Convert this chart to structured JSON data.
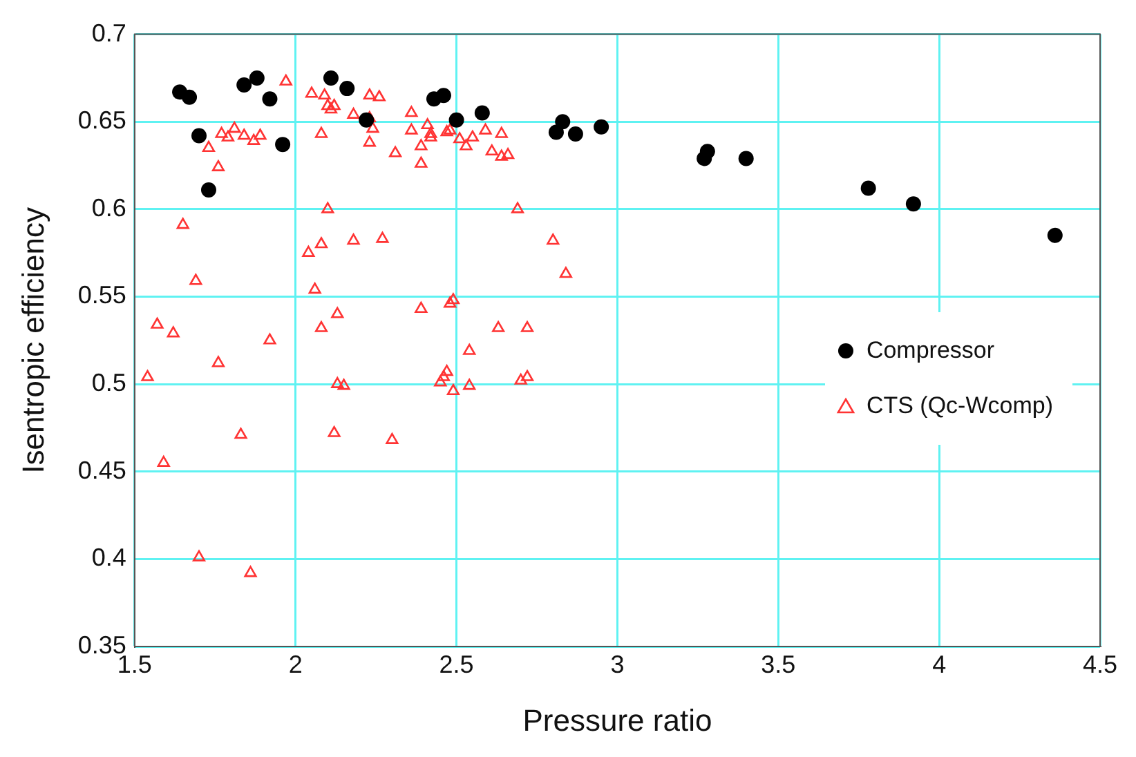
{
  "chart_data": {
    "type": "scatter",
    "xlabel": "Pressure ratio",
    "ylabel": "Isentropic efficiency",
    "xlim": [
      1.5,
      4.5
    ],
    "xticks": [
      1.5,
      2,
      2.5,
      3,
      3.5,
      4,
      4.5
    ],
    "ylim": [
      0.35,
      0.7
    ],
    "yticks": [
      0.35,
      0.4,
      0.45,
      0.5,
      0.55,
      0.6,
      0.65,
      0.7
    ],
    "grid": true,
    "legend": "right",
    "series": [
      {
        "name": "Compressor",
        "color": "#000000",
        "marker": "circle",
        "x": [
          1.64,
          1.67,
          1.7,
          1.73,
          1.84,
          1.88,
          1.92,
          1.96,
          2.11,
          2.16,
          2.22,
          2.43,
          2.46,
          2.5,
          2.58,
          2.81,
          2.83,
          2.87,
          2.95,
          3.27,
          3.28,
          3.4,
          3.78,
          3.92,
          4.36
        ],
        "values": [
          0.667,
          0.664,
          0.642,
          0.611,
          0.671,
          0.675,
          0.663,
          0.637,
          0.675,
          0.669,
          0.651,
          0.663,
          0.665,
          0.651,
          0.655,
          0.644,
          0.65,
          0.643,
          0.647,
          0.629,
          0.633,
          0.629,
          0.612,
          0.603,
          0.585
        ]
      },
      {
        "name": "CTS (Qc-Wcomp)",
        "color": "#ff3333",
        "marker": "triangle",
        "x": [
          1.54,
          1.57,
          1.62,
          1.65,
          1.59,
          1.69,
          1.7,
          1.73,
          1.76,
          1.76,
          1.77,
          1.79,
          1.81,
          1.83,
          1.84,
          1.86,
          1.87,
          1.89,
          1.92,
          1.97,
          2.04,
          2.05,
          2.06,
          2.08,
          2.08,
          2.08,
          2.09,
          2.1,
          2.1,
          2.11,
          2.12,
          2.13,
          2.13,
          2.12,
          2.15,
          2.18,
          2.18,
          2.23,
          2.23,
          2.23,
          2.24,
          2.26,
          2.27,
          2.31,
          2.3,
          2.36,
          2.36,
          2.39,
          2.39,
          2.39,
          2.41,
          2.42,
          2.42,
          2.45,
          2.46,
          2.47,
          2.47,
          2.48,
          2.48,
          2.49,
          2.49,
          2.51,
          2.53,
          2.54,
          2.54,
          2.55,
          2.59,
          2.61,
          2.63,
          2.64,
          2.64,
          2.66,
          2.69,
          2.7,
          2.72,
          2.72,
          2.8,
          2.84
        ],
        "values": [
          0.504,
          0.534,
          0.529,
          0.591,
          0.455,
          0.559,
          0.401,
          0.635,
          0.624,
          0.512,
          0.643,
          0.641,
          0.646,
          0.471,
          0.642,
          0.392,
          0.639,
          0.642,
          0.525,
          0.673,
          0.575,
          0.666,
          0.554,
          0.532,
          0.643,
          0.58,
          0.665,
          0.6,
          0.659,
          0.657,
          0.659,
          0.5,
          0.54,
          0.472,
          0.499,
          0.654,
          0.582,
          0.652,
          0.665,
          0.638,
          0.646,
          0.664,
          0.583,
          0.632,
          0.468,
          0.655,
          0.645,
          0.636,
          0.543,
          0.626,
          0.648,
          0.643,
          0.641,
          0.501,
          0.504,
          0.507,
          0.644,
          0.645,
          0.546,
          0.548,
          0.496,
          0.64,
          0.636,
          0.519,
          0.499,
          0.641,
          0.645,
          0.633,
          0.532,
          0.63,
          0.643,
          0.631,
          0.6,
          0.502,
          0.504,
          0.532,
          0.582,
          0.563
        ]
      }
    ]
  }
}
